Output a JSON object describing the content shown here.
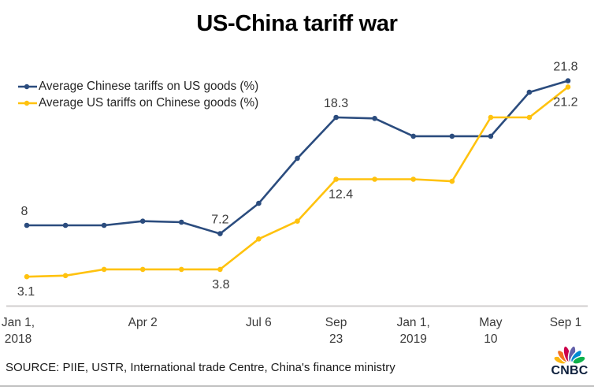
{
  "chart_data": {
    "type": "line",
    "title": "US-China tariff war",
    "n_points": 15,
    "series": [
      {
        "name": "Average Chinese tariffs on US goods (%)",
        "color": "#2B4C7E",
        "values": [
          8.0,
          8.0,
          8.0,
          8.4,
          8.3,
          7.2,
          10.1,
          14.4,
          18.3,
          18.2,
          16.5,
          16.5,
          16.5,
          20.7,
          21.8
        ]
      },
      {
        "name": "Average US tariffs on Chinese goods (%)",
        "color": "#FFC20E",
        "values": [
          3.1,
          3.2,
          3.8,
          3.8,
          3.8,
          3.8,
          6.7,
          8.4,
          12.4,
          12.4,
          12.4,
          12.2,
          18.3,
          18.3,
          21.2
        ]
      }
    ],
    "point_labels": [
      {
        "series": 0,
        "index": 0,
        "text": "8",
        "placement": "above",
        "dx": -3
      },
      {
        "series": 0,
        "index": 5,
        "text": "7.2",
        "placement": "above",
        "dx": 0
      },
      {
        "series": 0,
        "index": 8,
        "text": "18.3",
        "placement": "above",
        "dx": 0
      },
      {
        "series": 0,
        "index": 14,
        "text": "21.8",
        "placement": "above",
        "dx": -3
      },
      {
        "series": 1,
        "index": 0,
        "text": "3.1",
        "placement": "below",
        "dx": -1
      },
      {
        "series": 1,
        "index": 5,
        "text": "3.8",
        "placement": "below",
        "dx": 1
      },
      {
        "series": 1,
        "index": 8,
        "text": "12.4",
        "placement": "below",
        "dx": 6
      },
      {
        "series": 1,
        "index": 14,
        "text": "21.2",
        "placement": "below",
        "dx": -3
      }
    ],
    "x_tick_labels": [
      {
        "index": 0,
        "lines": [
          "Jan 1,",
          "2018"
        ],
        "dx": -11
      },
      {
        "index": 3,
        "lines": [
          "Apr 2"
        ],
        "dx": 0
      },
      {
        "index": 6,
        "lines": [
          "Jul 6"
        ],
        "dx": 0
      },
      {
        "index": 8,
        "lines": [
          "Sep",
          "23"
        ],
        "dx": 0
      },
      {
        "index": 10,
        "lines": [
          "Jan 1,",
          "2019"
        ],
        "dx": 0
      },
      {
        "index": 12,
        "lines": [
          "May",
          "10"
        ],
        "dx": 0
      },
      {
        "index": 14,
        "lines": [
          "Sep 1"
        ],
        "dx": -3
      }
    ],
    "grid": false,
    "y_axis_visible": false,
    "legend_position": "top-left"
  },
  "source": {
    "text": "SOURCE: PIIE, USTR, International trade Centre, China's finance ministry"
  },
  "branding": {
    "logo_text": "CNBC",
    "wordmark_color": "#0D1F3C",
    "peacock_colors": [
      "#FCB711",
      "#F37021",
      "#CC004C",
      "#6460AA",
      "#0089D0",
      "#0DB14B"
    ]
  },
  "colors": {
    "axis_line": "#D0CECE",
    "divider": "#C2C2C2",
    "label_text": "#3A3A3A",
    "title_text": "#000000"
  }
}
